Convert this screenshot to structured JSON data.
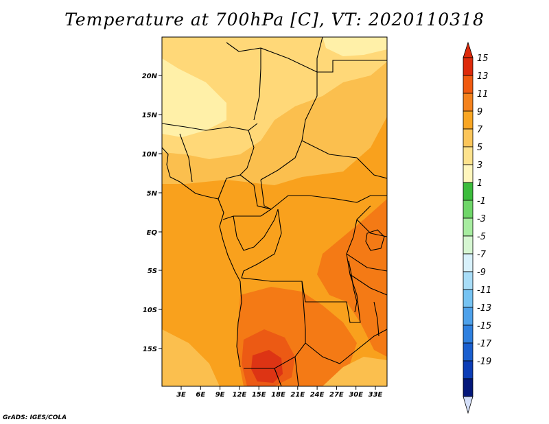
{
  "title": "Temperature at 700hPa [C], VT: 2020110318",
  "credit": "GrADS: IGES/COLA",
  "map": {
    "region": "Central and Southern-Central Africa",
    "lat_ticks": [
      "20N",
      "15N",
      "10N",
      "5N",
      "EQ",
      "5S",
      "10S",
      "15S"
    ],
    "lon_ticks": [
      "3E",
      "6E",
      "9E",
      "12E",
      "15E",
      "18E",
      "21E",
      "24E",
      "27E",
      "30E",
      "33E"
    ],
    "fill_colors": {
      "cool": "#fff0a8",
      "mild": "#ffd878",
      "warm": "#fbbf4e",
      "orange": "#f9a11d",
      "hot": "#f47a15",
      "hotter": "#ec5a14",
      "hottest": "#dd3414"
    }
  },
  "colorbar": {
    "levels": [
      "15",
      "13",
      "11",
      "9",
      "7",
      "5",
      "3",
      "1",
      "-1",
      "-3",
      "-5",
      "-7",
      "-9",
      "-11",
      "-13",
      "-15",
      "-17",
      "-19"
    ],
    "colors": [
      "#dd2a0b",
      "#f05a10",
      "#f4821d",
      "#f9a623",
      "#fbc55a",
      "#fde28d",
      "#fff6bd",
      "#3cbc3c",
      "#6fd669",
      "#a7eca0",
      "#d6f6d2",
      "#d8f1fb",
      "#a8ddf7",
      "#76c3f2",
      "#4ea1ea",
      "#2f80df",
      "#1a5fcf",
      "#0c3db6",
      "#04177a"
    ],
    "upper_arrow_color": "#dd2a0b",
    "lower_arrow_color": "#d4dff9"
  }
}
